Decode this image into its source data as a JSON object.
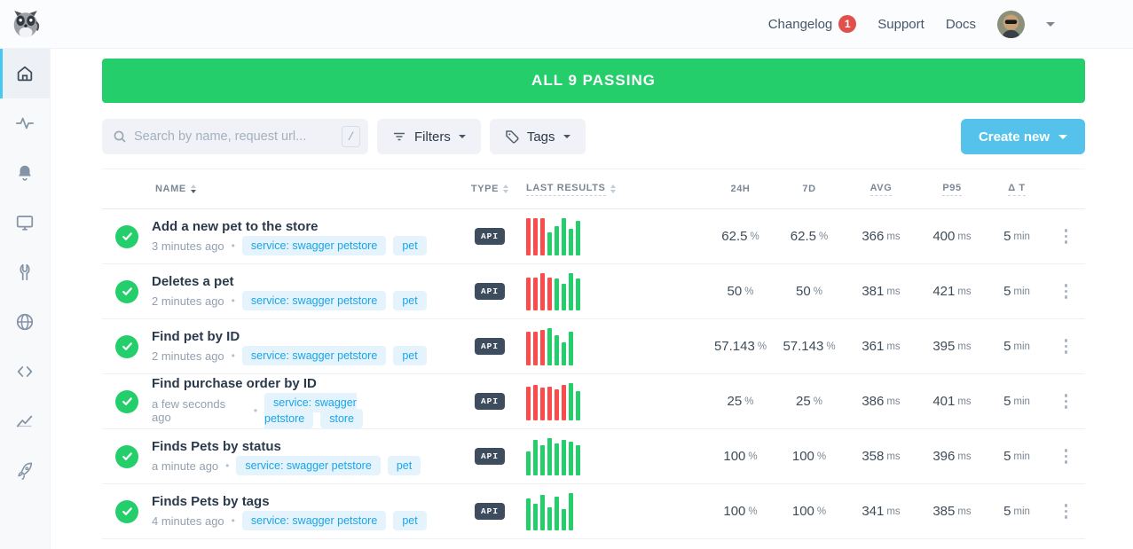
{
  "topbar": {
    "nav": [
      {
        "label": "Changelog",
        "badge": "1"
      },
      {
        "label": "Support",
        "badge": null
      },
      {
        "label": "Docs",
        "badge": null
      }
    ]
  },
  "sidebar": {
    "items": [
      {
        "icon": "home-icon",
        "active": true
      },
      {
        "icon": "activity-pulse-icon",
        "active": false
      },
      {
        "icon": "alerts-bell-icon",
        "active": false
      },
      {
        "icon": "dashboards-monitor-icon",
        "active": false
      },
      {
        "icon": "maintenance-wrench-icon",
        "active": false
      },
      {
        "icon": "locations-globe-icon",
        "active": false
      },
      {
        "icon": "snippets-code-icon",
        "active": false
      },
      {
        "icon": "analytics-chart-icon",
        "active": false
      },
      {
        "icon": "quickstart-rocket-icon",
        "active": false
      }
    ]
  },
  "banner": {
    "label": "ALL 9 PASSING"
  },
  "toolbar": {
    "search_placeholder": "Search by name, request url...",
    "search_shortcut": "/",
    "filters_label": "Filters",
    "tags_label": "Tags",
    "create_label": "Create new"
  },
  "table": {
    "headers": {
      "name": "NAME",
      "type": "TYPE",
      "last_results": "LAST RESULTS",
      "h24": "24H",
      "d7": "7D",
      "avg": "AVG",
      "p95": "P95",
      "dt": "Δ T"
    },
    "rows": [
      {
        "name": "Add a new pet to the store",
        "time": "3 minutes ago",
        "tags": [
          "service: swagger petstore",
          "pet"
        ],
        "type": "API",
        "results": [
          [
            "r",
            100
          ],
          [
            "r",
            100
          ],
          [
            "r",
            100
          ],
          [
            "g",
            62
          ],
          [
            "g",
            78
          ],
          [
            "g",
            100
          ],
          [
            "g",
            72
          ],
          [
            "g",
            92
          ]
        ],
        "stats": {
          "h24": {
            "v": "62.5",
            "u": "%"
          },
          "d7": {
            "v": "62.5",
            "u": "%"
          },
          "avg": {
            "v": "366",
            "u": "ms"
          },
          "p95": {
            "v": "400",
            "u": "ms"
          },
          "dt": {
            "v": "5",
            "u": "min"
          }
        }
      },
      {
        "name": "Deletes a pet",
        "time": "2 minutes ago",
        "tags": [
          "service: swagger petstore",
          "pet"
        ],
        "type": "API",
        "results": [
          [
            "r",
            88
          ],
          [
            "r",
            88
          ],
          [
            "r",
            100
          ],
          [
            "r",
            88
          ],
          [
            "g",
            85
          ],
          [
            "g",
            72
          ],
          [
            "g",
            100
          ],
          [
            "g",
            85
          ]
        ],
        "stats": {
          "h24": {
            "v": "50",
            "u": "%"
          },
          "d7": {
            "v": "50",
            "u": "%"
          },
          "avg": {
            "v": "381",
            "u": "ms"
          },
          "p95": {
            "v": "421",
            "u": "ms"
          },
          "dt": {
            "v": "5",
            "u": "min"
          }
        }
      },
      {
        "name": "Find pet by ID",
        "time": "2 minutes ago",
        "tags": [
          "service: swagger petstore",
          "pet"
        ],
        "type": "API",
        "results": [
          [
            "r",
            90
          ],
          [
            "r",
            90
          ],
          [
            "r",
            96
          ],
          [
            "g",
            100
          ],
          [
            "g",
            80
          ],
          [
            "g",
            62
          ],
          [
            "g",
            90
          ]
        ],
        "stats": {
          "h24": {
            "v": "57.143",
            "u": "%"
          },
          "d7": {
            "v": "57.143",
            "u": "%"
          },
          "avg": {
            "v": "361",
            "u": "ms"
          },
          "p95": {
            "v": "395",
            "u": "ms"
          },
          "dt": {
            "v": "5",
            "u": "min"
          }
        }
      },
      {
        "name": "Find purchase order by ID",
        "time": "a few seconds ago",
        "tags": [
          "service: swagger petstore",
          "store"
        ],
        "type": "API",
        "results": [
          [
            "r",
            90
          ],
          [
            "r",
            96
          ],
          [
            "r",
            88
          ],
          [
            "r",
            90
          ],
          [
            "r",
            84
          ],
          [
            "r",
            95
          ],
          [
            "g",
            100
          ],
          [
            "g",
            78
          ]
        ],
        "stats": {
          "h24": {
            "v": "25",
            "u": "%"
          },
          "d7": {
            "v": "25",
            "u": "%"
          },
          "avg": {
            "v": "386",
            "u": "ms"
          },
          "p95": {
            "v": "401",
            "u": "ms"
          },
          "dt": {
            "v": "5",
            "u": "min"
          }
        }
      },
      {
        "name": "Finds Pets by status",
        "time": "a minute ago",
        "tags": [
          "service: swagger petstore",
          "pet"
        ],
        "type": "API",
        "results": [
          [
            "g",
            65
          ],
          [
            "g",
            95
          ],
          [
            "g",
            82
          ],
          [
            "g",
            100
          ],
          [
            "g",
            85
          ],
          [
            "g",
            95
          ],
          [
            "g",
            90
          ],
          [
            "g",
            80
          ]
        ],
        "stats": {
          "h24": {
            "v": "100",
            "u": "%"
          },
          "d7": {
            "v": "100",
            "u": "%"
          },
          "avg": {
            "v": "358",
            "u": "ms"
          },
          "p95": {
            "v": "396",
            "u": "ms"
          },
          "dt": {
            "v": "5",
            "u": "min"
          }
        }
      },
      {
        "name": "Finds Pets by tags",
        "time": "4 minutes ago",
        "tags": [
          "service: swagger petstore",
          "pet"
        ],
        "type": "API",
        "results": [
          [
            "g",
            85
          ],
          [
            "g",
            72
          ],
          [
            "g",
            95
          ],
          [
            "g",
            62
          ],
          [
            "g",
            90
          ],
          [
            "g",
            58
          ],
          [
            "g",
            100
          ]
        ],
        "stats": {
          "h24": {
            "v": "100",
            "u": "%"
          },
          "d7": {
            "v": "100",
            "u": "%"
          },
          "avg": {
            "v": "341",
            "u": "ms"
          },
          "p95": {
            "v": "385",
            "u": "ms"
          },
          "dt": {
            "v": "5",
            "u": "min"
          }
        }
      }
    ]
  },
  "colors": {
    "green": "#23ce6b",
    "red": "#fc4b4b",
    "accent_blue": "#55c2eb",
    "tag_text_blue": "#1aa5e8",
    "badge_red": "#e2504b",
    "api_badge_bg": "#3e4d5e"
  }
}
